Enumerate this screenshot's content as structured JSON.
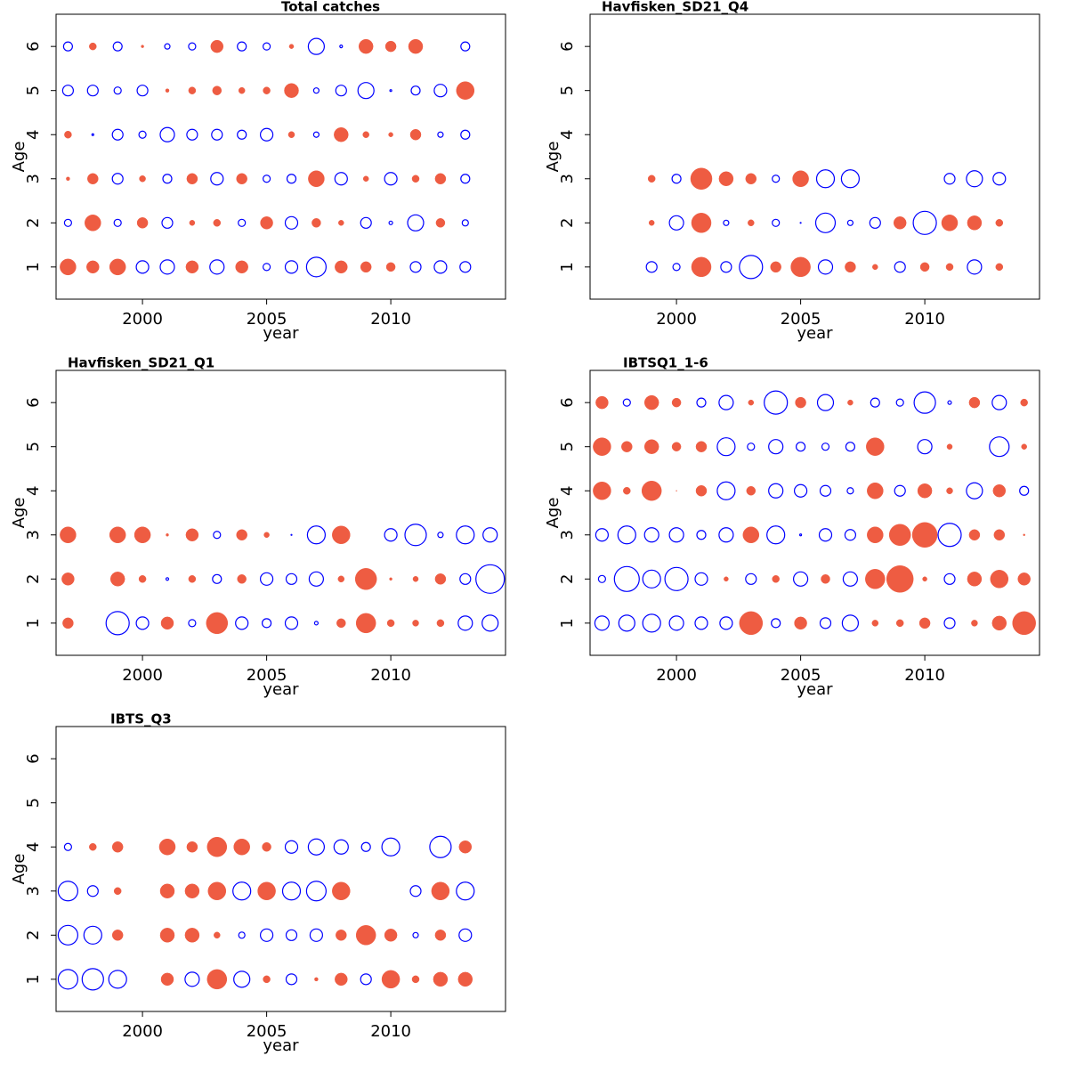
{
  "chart_data": [
    {
      "type": "bubble",
      "title": "Total catches",
      "xlabel": "year",
      "ylabel": "Age",
      "xlim": [
        1996.52,
        2014.62
      ],
      "ylim": [
        0.27,
        6.73
      ],
      "xticks": [
        2000,
        2005,
        2010
      ],
      "yticks": [
        1,
        2,
        3,
        4,
        5,
        6
      ],
      "positive_color": "#ee5c42",
      "negative_color": "#0000ff",
      "years": [
        1997,
        1998,
        1999,
        2000,
        2001,
        2002,
        2003,
        2004,
        2005,
        2006,
        2007,
        2008,
        2009,
        2010,
        2011,
        2012,
        2013
      ],
      "ages": [
        1,
        2,
        3,
        4,
        5,
        6
      ],
      "values": [
        [
          1.8,
          1.4,
          1.8,
          -1.4,
          -1.6,
          1.4,
          -1.6,
          1.4,
          -0.8,
          -1.4,
          -2.2,
          1.4,
          1.2,
          1.0,
          -1.2,
          -1.4,
          -1.2
        ],
        [
          -0.8,
          1.8,
          -0.8,
          1.2,
          -1.2,
          0.6,
          0.8,
          -0.8,
          1.4,
          -1.4,
          1.0,
          0.6,
          -1.2,
          -0.4,
          -1.8,
          1.0,
          -0.7
        ],
        [
          0.4,
          1.2,
          -1.2,
          0.7,
          -1.0,
          1.2,
          -1.4,
          1.2,
          -0.8,
          -1.0,
          1.8,
          -1.4,
          0.6,
          -1.4,
          0.8,
          1.2,
          -1.0
        ],
        [
          0.8,
          -0.2,
          -1.2,
          -0.8,
          -1.6,
          -1.2,
          -1.2,
          -1.0,
          -1.4,
          0.7,
          -0.6,
          1.6,
          0.7,
          0.5,
          1.2,
          -0.6,
          -1.0
        ],
        [
          -1.2,
          -1.2,
          -0.8,
          -1.2,
          0.4,
          0.8,
          1.0,
          0.7,
          0.8,
          1.6,
          -0.6,
          -1.2,
          -1.8,
          -0.2,
          -1.0,
          -1.4,
          2.0
        ],
        [
          -1.0,
          0.8,
          -1.0,
          0.3,
          -0.6,
          -0.8,
          1.4,
          -1.0,
          -0.8,
          0.5,
          -1.8,
          -0.3,
          1.6,
          1.2,
          1.6,
          null,
          -1.0
        ]
      ]
    },
    {
      "type": "bubble",
      "title": "Havfisken_SD21_Q4",
      "xlabel": "year",
      "ylabel": "Age",
      "xlim": [
        1996.52,
        2014.62
      ],
      "ylim": [
        0.27,
        6.73
      ],
      "xticks": [
        2000,
        2005,
        2010
      ],
      "yticks": [
        1,
        2,
        3,
        4,
        5,
        6
      ],
      "positive_color": "#ee5c42",
      "negative_color": "#0000ff",
      "years": [
        1999,
        2000,
        2001,
        2002,
        2003,
        2004,
        2005,
        2006,
        2007,
        2008,
        2009,
        2010,
        2011,
        2012,
        2013
      ],
      "ages": [
        1,
        2,
        3
      ],
      "values": [
        [
          -1.2,
          -0.8,
          2.2,
          -1.2,
          -2.6,
          1.2,
          2.2,
          -1.6,
          1.2,
          0.6,
          -1.2,
          1.0,
          0.8,
          -1.6,
          0.8
        ],
        [
          0.6,
          -1.6,
          2.2,
          -0.6,
          0.7,
          -0.8,
          -0.1,
          -2.2,
          -0.6,
          -1.2,
          1.4,
          -2.6,
          1.8,
          1.6,
          0.8
        ],
        [
          0.8,
          -1.0,
          2.4,
          1.6,
          1.2,
          -0.8,
          1.8,
          -2.0,
          -2.0,
          null,
          null,
          null,
          -1.2,
          -1.8,
          -1.4
        ]
      ]
    },
    {
      "type": "bubble",
      "title": "Havfisken_SD21_Q1",
      "xlabel": "year",
      "ylabel": "Age",
      "xlim": [
        1996.52,
        2014.62
      ],
      "ylim": [
        0.27,
        6.73
      ],
      "xticks": [
        2000,
        2005,
        2010
      ],
      "yticks": [
        1,
        2,
        3,
        4,
        5,
        6
      ],
      "positive_color": "#ee5c42",
      "negative_color": "#0000ff",
      "years": [
        1997,
        1998,
        1999,
        2000,
        2001,
        2002,
        2003,
        2004,
        2005,
        2006,
        2007,
        2008,
        2009,
        2010,
        2011,
        2012,
        2013,
        2014
      ],
      "ages": [
        1,
        2,
        3
      ],
      "values": [
        [
          1.2,
          null,
          -2.6,
          -1.4,
          1.4,
          -0.8,
          2.4,
          -1.4,
          -1.0,
          -1.4,
          -0.4,
          1.0,
          2.2,
          0.8,
          0.7,
          0.8,
          -1.6,
          -1.8
        ],
        [
          1.4,
          null,
          1.6,
          0.8,
          -0.3,
          0.8,
          -1.0,
          1.0,
          -1.4,
          -1.2,
          -1.6,
          0.7,
          2.4,
          0.3,
          0.6,
          1.2,
          -1.2,
          -3.2
        ],
        [
          1.8,
          null,
          1.8,
          1.8,
          0.3,
          1.4,
          -0.8,
          1.2,
          0.6,
          -0.1,
          -2.0,
          2.0,
          null,
          -1.4,
          -2.4,
          -0.6,
          -2.0,
          -1.6
        ]
      ]
    },
    {
      "type": "bubble",
      "title": "IBTSQ1_1-6",
      "xlabel": "year",
      "ylabel": "Age",
      "xlim": [
        1996.52,
        2014.62
      ],
      "ylim": [
        0.27,
        6.73
      ],
      "xticks": [
        2000,
        2005,
        2010
      ],
      "yticks": [
        1,
        2,
        3,
        4,
        5,
        6
      ],
      "positive_color": "#ee5c42",
      "negative_color": "#0000ff",
      "years": [
        1997,
        1998,
        1999,
        2000,
        2001,
        2002,
        2003,
        2004,
        2005,
        2006,
        2007,
        2008,
        2009,
        2010,
        2011,
        2012,
        2013,
        2014
      ],
      "ages": [
        1,
        2,
        3,
        4,
        5,
        6
      ],
      "values": [
        [
          -1.6,
          -1.8,
          -2.0,
          -1.6,
          -1.4,
          -1.4,
          2.6,
          -1.0,
          1.4,
          -1.2,
          -1.8,
          0.7,
          0.8,
          1.2,
          -1.2,
          0.7,
          1.6,
          2.6
        ],
        [
          -0.8,
          -2.8,
          -2.0,
          -2.6,
          -1.4,
          0.5,
          -1.2,
          0.8,
          -1.6,
          1.0,
          -1.6,
          2.2,
          3.0,
          0.5,
          -1.2,
          1.6,
          2.0,
          1.4
        ],
        [
          -1.4,
          -2.0,
          -1.6,
          -1.6,
          -1.0,
          -1.6,
          1.8,
          -2.0,
          -0.2,
          -1.4,
          -1.2,
          1.8,
          2.4,
          2.8,
          -2.6,
          1.2,
          1.2,
          0.2
        ],
        [
          2.0,
          0.8,
          2.2,
          0.1,
          1.2,
          -2.0,
          1.0,
          -1.6,
          -1.4,
          -1.2,
          -0.7,
          1.8,
          -1.2,
          1.6,
          0.7,
          -1.8,
          1.4,
          -1.0
        ],
        [
          2.0,
          1.2,
          1.6,
          1.0,
          1.2,
          -2.0,
          -0.8,
          -1.6,
          -1.0,
          -0.8,
          -1.0,
          2.0,
          null,
          -1.6,
          0.6,
          null,
          -2.2,
          0.6
        ],
        [
          1.4,
          -0.8,
          1.6,
          1.0,
          -1.0,
          -1.6,
          0.6,
          -2.6,
          1.2,
          -1.8,
          0.6,
          -1.0,
          -0.8,
          -2.4,
          -0.4,
          1.2,
          -1.6,
          0.8
        ]
      ]
    },
    {
      "type": "bubble",
      "title": "IBTS_Q3",
      "xlabel": "year",
      "ylabel": "Age",
      "xlim": [
        1996.52,
        2014.62
      ],
      "ylim": [
        0.27,
        6.73
      ],
      "xticks": [
        2000,
        2005,
        2010
      ],
      "yticks": [
        1,
        2,
        3,
        4,
        5,
        6
      ],
      "positive_color": "#ee5c42",
      "negative_color": "#0000ff",
      "years": [
        1997,
        1998,
        1999,
        2000,
        2001,
        2002,
        2003,
        2004,
        2005,
        2006,
        2007,
        2008,
        2009,
        2010,
        2011,
        2012,
        2013
      ],
      "ages": [
        1,
        2,
        3,
        4
      ],
      "values": [
        [
          -2.2,
          -2.4,
          -2.0,
          null,
          1.4,
          -1.6,
          2.2,
          -1.8,
          0.8,
          -1.2,
          0.4,
          1.4,
          -1.2,
          2.0,
          0.8,
          1.6,
          1.6
        ],
        [
          -2.2,
          -2.0,
          1.2,
          null,
          1.6,
          1.6,
          0.7,
          -0.7,
          -1.4,
          -1.2,
          -1.4,
          1.2,
          2.2,
          1.4,
          -0.6,
          1.2,
          -1.4
        ],
        [
          -2.2,
          -1.2,
          0.8,
          null,
          1.6,
          1.6,
          2.0,
          -2.0,
          2.0,
          -2.0,
          -2.2,
          2.0,
          null,
          null,
          -1.2,
          2.0,
          -2.0
        ],
        [
          -0.8,
          0.8,
          1.2,
          null,
          1.8,
          1.2,
          2.2,
          1.8,
          1.0,
          -1.4,
          -1.8,
          -1.6,
          -1.0,
          -2.0,
          null,
          -2.4,
          1.4
        ]
      ]
    }
  ]
}
